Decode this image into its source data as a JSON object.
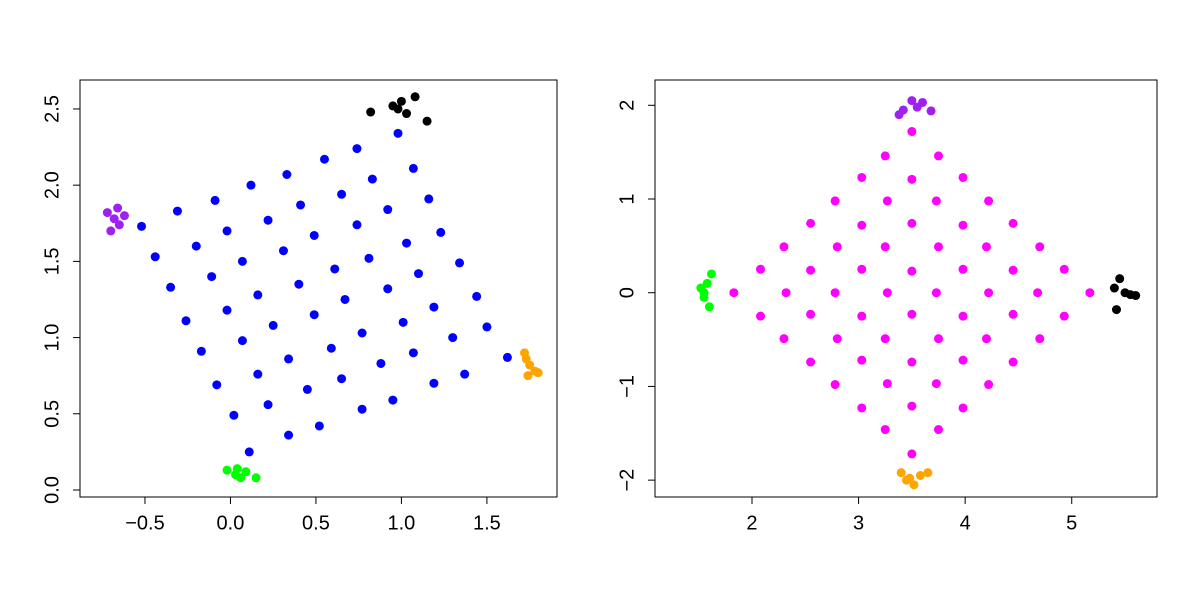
{
  "chart_data": [
    {
      "type": "scatter",
      "xlim": [
        -0.88,
        1.91
      ],
      "ylim": [
        -0.046,
        2.69
      ],
      "xticks": [
        {
          "value": -0.5,
          "label": "−0.5"
        },
        {
          "value": 0,
          "label": "0.0"
        },
        {
          "value": 0.5,
          "label": "0.5"
        },
        {
          "value": 1,
          "label": "1.0"
        },
        {
          "value": 1.5,
          "label": "1.5"
        }
      ],
      "yticks": [
        {
          "value": 0,
          "label": "0.0"
        },
        {
          "value": 0.5,
          "label": "0.5"
        },
        {
          "value": 1,
          "label": "1.0"
        },
        {
          "value": 1.5,
          "label": "1.5"
        },
        {
          "value": 2,
          "label": "2.0"
        },
        {
          "value": 2.5,
          "label": "2.5"
        }
      ],
      "series": [
        {
          "color": "#0000ff",
          "x": [
            0.11,
            0.34,
            0.52,
            0.77,
            0.95,
            1.19,
            1.37,
            1.62,
            0.02,
            0.22,
            0.45,
            0.65,
            0.88,
            1.07,
            1.3,
            1.5,
            -0.08,
            0.16,
            0.34,
            0.59,
            0.77,
            1.01,
            1.19,
            1.44,
            -0.17,
            0.07,
            0.25,
            0.49,
            0.67,
            0.92,
            1.1,
            1.34,
            -0.26,
            -0.02,
            0.16,
            0.4,
            0.61,
            0.81,
            1.03,
            1.23,
            -0.35,
            -0.11,
            0.07,
            0.31,
            0.49,
            0.74,
            0.92,
            1.16,
            -0.44,
            -0.2,
            -0.02,
            0.22,
            0.41,
            0.65,
            0.83,
            1.07,
            -0.52,
            -0.31,
            -0.09,
            0.12,
            0.33,
            0.55,
            0.74,
            0.98
          ],
          "y": [
            0.25,
            0.36,
            0.42,
            0.53,
            0.59,
            0.7,
            0.76,
            0.87,
            0.49,
            0.56,
            0.66,
            0.73,
            0.83,
            0.9,
            1.0,
            1.07,
            0.69,
            0.76,
            0.86,
            0.93,
            1.03,
            1.1,
            1.2,
            1.27,
            0.91,
            0.98,
            1.08,
            1.15,
            1.25,
            1.32,
            1.42,
            1.49,
            1.11,
            1.18,
            1.28,
            1.35,
            1.45,
            1.52,
            1.62,
            1.69,
            1.33,
            1.4,
            1.5,
            1.57,
            1.67,
            1.74,
            1.84,
            1.91,
            1.53,
            1.6,
            1.7,
            1.77,
            1.87,
            1.94,
            2.04,
            2.11,
            1.73,
            1.83,
            1.9,
            2.0,
            2.07,
            2.17,
            2.24,
            2.34
          ]
        },
        {
          "color": "#000000",
          "x": [
            0.82,
            0.95,
            1.0,
            1.03,
            1.08,
            1.15,
            0.98
          ],
          "y": [
            2.48,
            2.52,
            2.55,
            2.47,
            2.58,
            2.42,
            2.5
          ]
        },
        {
          "color": "#a020f0",
          "x": [
            -0.72,
            -0.68,
            -0.65,
            -0.7,
            -0.66,
            -0.62
          ],
          "y": [
            1.82,
            1.78,
            1.74,
            1.7,
            1.85,
            1.8
          ]
        },
        {
          "color": "#ffa500",
          "x": [
            1.72,
            1.75,
            1.78,
            1.74,
            1.8,
            1.73
          ],
          "y": [
            0.9,
            0.82,
            0.78,
            0.75,
            0.77,
            0.86
          ]
        },
        {
          "color": "#00ff00",
          "x": [
            -0.02,
            0.03,
            0.06,
            0.09,
            0.15,
            0.04
          ],
          "y": [
            0.13,
            0.1,
            0.08,
            0.12,
            0.08,
            0.14
          ]
        }
      ]
    },
    {
      "type": "scatter",
      "xlim": [
        1.09,
        5.8
      ],
      "ylim": [
        -2.18,
        2.27
      ],
      "xticks": [
        2,
        3,
        4,
        5
      ],
      "yticks": [
        {
          "value": -2,
          "label": "−2"
        },
        {
          "value": -1,
          "label": "−1"
        },
        0,
        1,
        2
      ],
      "series": [
        {
          "color": "#ff00ff",
          "x": [
            3.5,
            3.75,
            3.98,
            4.22,
            4.45,
            4.7,
            4.93,
            5.17,
            3.25,
            3.5,
            3.73,
            3.98,
            4.2,
            4.45,
            4.68,
            4.93,
            3.03,
            3.27,
            3.5,
            3.75,
            3.98,
            4.22,
            4.45,
            4.7,
            2.78,
            3.03,
            3.25,
            3.5,
            3.73,
            3.98,
            4.2,
            4.45,
            2.55,
            2.8,
            3.03,
            3.27,
            3.5,
            3.75,
            3.98,
            4.22,
            2.3,
            2.55,
            2.78,
            3.03,
            3.25,
            3.5,
            3.73,
            3.98,
            2.08,
            2.32,
            2.55,
            2.8,
            3.03,
            3.27,
            3.5,
            3.75,
            1.83,
            2.08,
            2.3,
            2.55,
            2.78,
            3.03,
            3.25,
            3.5
          ],
          "y": [
            -1.72,
            -1.46,
            -1.23,
            -0.98,
            -0.74,
            -0.49,
            -0.25,
            0.0,
            -1.46,
            -1.21,
            -0.97,
            -0.72,
            -0.49,
            -0.23,
            0.0,
            0.25,
            -1.23,
            -0.97,
            -0.74,
            -0.49,
            -0.25,
            0.0,
            0.24,
            0.49,
            -0.98,
            -0.72,
            -0.49,
            -0.23,
            0.0,
            0.25,
            0.49,
            0.74,
            -0.74,
            -0.49,
            -0.25,
            0.0,
            0.23,
            0.49,
            0.72,
            0.98,
            -0.49,
            -0.23,
            0.0,
            0.25,
            0.49,
            0.74,
            0.98,
            1.23,
            -0.25,
            0.0,
            0.24,
            0.49,
            0.72,
            0.98,
            1.21,
            1.46,
            0.0,
            0.25,
            0.49,
            0.74,
            0.98,
            1.23,
            1.46,
            1.72
          ]
        },
        {
          "color": "#a020f0",
          "x": [
            3.42,
            3.5,
            3.55,
            3.6,
            3.68,
            3.38
          ],
          "y": [
            1.95,
            2.05,
            1.98,
            2.03,
            1.94,
            1.9
          ]
        },
        {
          "color": "#000000",
          "x": [
            5.4,
            5.45,
            5.5,
            5.55,
            5.6,
            5.42
          ],
          "y": [
            0.05,
            0.15,
            0.0,
            -0.02,
            -0.03,
            -0.18
          ]
        },
        {
          "color": "#ffa500",
          "x": [
            3.4,
            3.48,
            3.52,
            3.58,
            3.65,
            3.45
          ],
          "y": [
            -1.92,
            -1.98,
            -2.05,
            -1.95,
            -1.92,
            -2.0
          ]
        },
        {
          "color": "#00ff00",
          "x": [
            1.52,
            1.55,
            1.58,
            1.6,
            1.62,
            1.55
          ],
          "y": [
            0.05,
            -0.05,
            0.1,
            -0.15,
            0.2,
            0.0
          ]
        }
      ]
    }
  ]
}
